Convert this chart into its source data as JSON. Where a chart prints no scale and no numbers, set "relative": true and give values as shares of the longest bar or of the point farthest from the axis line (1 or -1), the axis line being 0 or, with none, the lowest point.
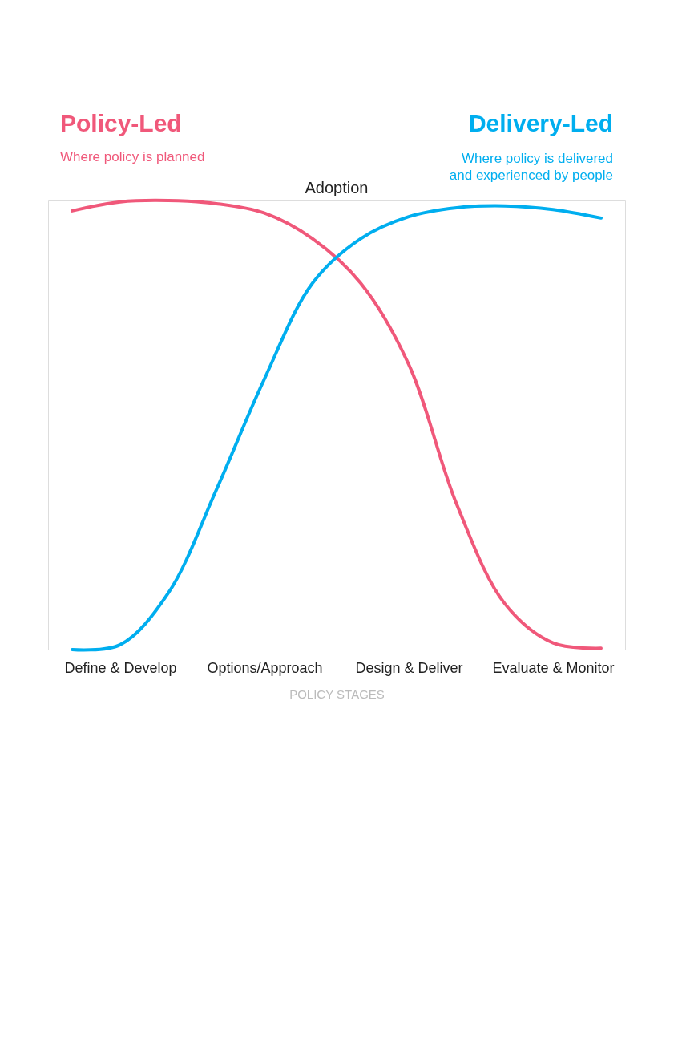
{
  "chart_data": {
    "type": "line",
    "relative": true,
    "xlabel": "POLICY STAGES",
    "categories": [
      null,
      "Define & Develop",
      null,
      null,
      "Options/Approach",
      null,
      null,
      "Design & Deliver",
      null,
      null,
      "Evaluate & Monitor",
      null
    ],
    "series": [
      {
        "name": "Policy-Led",
        "color": "#f0587a",
        "values": [
          0.977,
          0.997,
          1.0,
          0.993,
          0.972,
          0.915,
          0.816,
          0.635,
          0.323,
          0.102,
          0.015,
          0.003
        ]
      },
      {
        "name": "Delivery-Led",
        "color": "#00aeef",
        "values": [
          0.0,
          0.011,
          0.126,
          0.356,
          0.603,
          0.816,
          0.915,
          0.964,
          0.984,
          0.988,
          0.98,
          0.961
        ]
      }
    ],
    "annotations": [
      "Where policy is planned",
      "Where policy is delivered\nand experienced by people",
      "Adoption"
    ],
    "grid": false,
    "line_style": "solid",
    "marker": "none"
  }
}
